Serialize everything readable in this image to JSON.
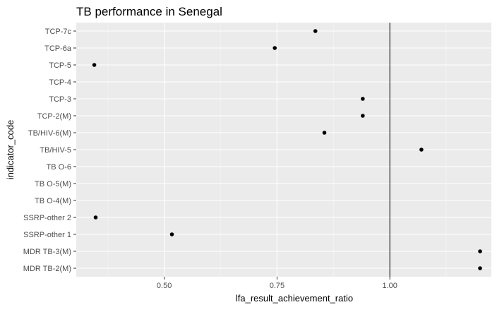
{
  "chart_data": {
    "type": "scatter",
    "title": "TB performance in Senegal",
    "xlabel": "lfa_result_achievement_ratio",
    "ylabel": "indicator_code",
    "xlim": [
      0.305,
      1.225
    ],
    "x_ticks": [
      0.5,
      0.75,
      1.0
    ],
    "x_tick_labels": [
      "0.50",
      "0.75",
      "1.00"
    ],
    "reference_line_x": 1.0,
    "categories": [
      "TCP-7c",
      "TCP-6a",
      "TCP-5",
      "TCP-4",
      "TCP-3",
      "TCP-2(M)",
      "TB/HIV-6(M)",
      "TB/HIV-5",
      "TB O-6",
      "TB O-5(M)",
      "TB O-4(M)",
      "SSRP-other 2",
      "SSRP-other 1",
      "MDR TB-3(M)",
      "MDR TB-2(M)"
    ],
    "values": [
      0.835,
      0.745,
      0.345,
      null,
      0.94,
      0.94,
      0.855,
      1.07,
      null,
      null,
      null,
      0.348,
      0.517,
      1.2,
      1.2
    ],
    "grid": true,
    "legend": "none",
    "colors": {
      "panel_background": "#ebebeb",
      "grid_major": "#ffffff",
      "grid_minor": "#f5f5f5",
      "point": "#000000",
      "reference_line": "#000000"
    }
  }
}
